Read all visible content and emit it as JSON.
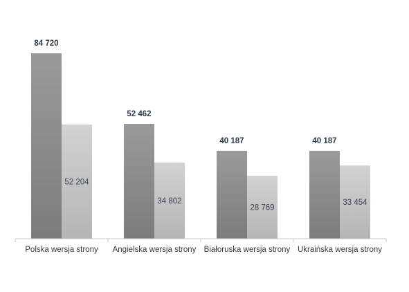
{
  "chart_data": {
    "type": "bar",
    "title": "",
    "xlabel": "",
    "ylabel": "",
    "ylim": [
      0,
      90000
    ],
    "grid": false,
    "legend": "none",
    "categories": [
      "Polska wersja strony",
      "Angielska wersja strony",
      "Białoruska wersja strony",
      "Ukraińska wersja strony"
    ],
    "series": [
      {
        "values": [
          84720,
          52462,
          40187,
          40187
        ],
        "labels": [
          "84 720",
          "52 462",
          "40 187",
          "40 187"
        ],
        "color_top": "#9a9a9a",
        "color_bottom": "#7c7c7c",
        "label_position": "above"
      },
      {
        "values": [
          52204,
          34802,
          28769,
          33454
        ],
        "labels": [
          "52 204",
          "34 802",
          "28 769",
          "33 454"
        ],
        "color_top": "#d2d2d2",
        "color_bottom": "#b5b5b5",
        "label_position": "inside"
      }
    ],
    "axis_color": "#c8c8c8"
  }
}
